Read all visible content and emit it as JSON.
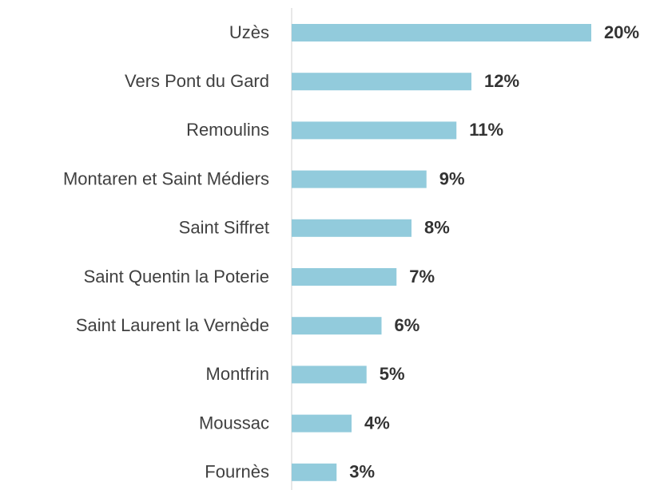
{
  "chart_data": {
    "type": "bar",
    "orientation": "horizontal",
    "categories": [
      "Uzès",
      "Vers Pont du Gard",
      "Remoulins",
      "Montaren et Saint Médiers",
      "Saint Siffret",
      "Saint Quentin la Poterie",
      "Saint Laurent la Vernède",
      "Montfrin",
      "Moussac",
      "Fournès"
    ],
    "values": [
      20,
      12,
      11,
      9,
      8,
      7,
      6,
      5,
      4,
      3
    ],
    "value_labels": [
      "20%",
      "12%",
      "11%",
      "9%",
      "8%",
      "7%",
      "6%",
      "5%",
      "4%",
      "3%"
    ],
    "color": "#92cbdc",
    "xlim": [
      0,
      20
    ]
  }
}
